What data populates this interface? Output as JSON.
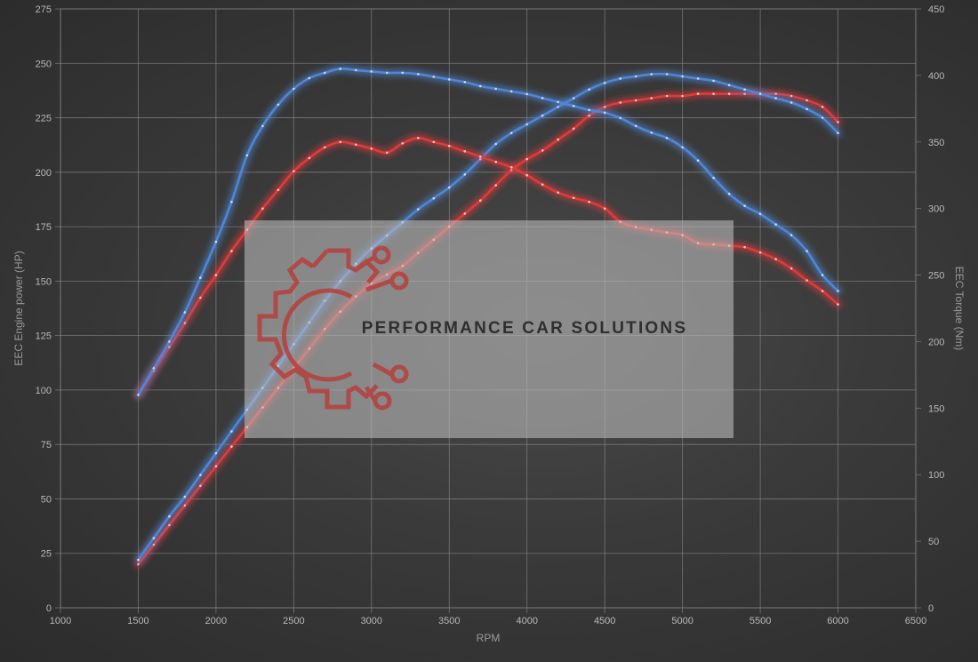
{
  "chart_data": {
    "type": "line",
    "title": "",
    "xlabel": "RPM",
    "ylabel_left": "EEC Engine power (HP)",
    "ylabel_right": "EEC Torque (Nm)",
    "xlim": [
      1000,
      6500
    ],
    "ylim_left": [
      0,
      275
    ],
    "ylim_right": [
      0,
      450
    ],
    "x_ticks": [
      1000,
      1500,
      2000,
      2500,
      3000,
      3500,
      4000,
      4500,
      5000,
      5500,
      6000,
      6500
    ],
    "y_left_ticks": [
      0,
      25,
      50,
      75,
      100,
      125,
      150,
      175,
      200,
      225,
      250,
      275
    ],
    "y_right_ticks": [
      0,
      50,
      100,
      150,
      200,
      250,
      300,
      350,
      400,
      450
    ],
    "grid": true,
    "series": [
      {
        "axis": "left",
        "color": "#e03a3a",
        "x": [
          1500,
          1600,
          1700,
          1800,
          1900,
          2000,
          2100,
          2200,
          2300,
          2400,
          2500,
          2600,
          2700,
          2800,
          2900,
          3000,
          3100,
          3200,
          3300,
          3400,
          3500,
          3600,
          3700,
          3800,
          3900,
          4000,
          4100,
          4200,
          4300,
          4400,
          4500,
          4600,
          4700,
          4800,
          4900,
          5000,
          5100,
          5200,
          5300,
          5400,
          5500,
          5600,
          5700,
          5800,
          5900,
          6000
        ],
        "y": [
          20,
          29,
          38,
          47,
          56,
          65,
          74,
          83,
          92,
          101,
          110,
          119,
          128,
          136,
          143,
          149,
          153,
          157,
          163,
          169,
          175,
          181,
          187,
          194,
          201,
          206,
          210,
          215,
          220,
          226,
          230,
          232,
          233,
          234,
          235,
          235,
          236,
          236,
          236,
          236,
          236,
          236,
          235,
          233,
          230,
          223
        ]
      },
      {
        "axis": "left",
        "color": "#4f86d6",
        "x": [
          1500,
          1600,
          1700,
          1800,
          1900,
          2000,
          2100,
          2200,
          2300,
          2400,
          2500,
          2600,
          2700,
          2800,
          2900,
          3000,
          3100,
          3200,
          3300,
          3400,
          3500,
          3600,
          3700,
          3800,
          3900,
          4000,
          4100,
          4200,
          4300,
          4400,
          4500,
          4600,
          4700,
          4800,
          4900,
          5000,
          5100,
          5200,
          5300,
          5400,
          5500,
          5600,
          5700,
          5800,
          5900,
          6000
        ],
        "y": [
          22,
          32,
          42,
          51,
          61,
          71,
          81,
          91,
          101,
          111,
          121,
          131,
          141,
          150,
          158,
          165,
          171,
          177,
          183,
          188,
          193,
          199,
          206,
          213,
          218,
          222,
          226,
          230,
          234,
          238,
          241,
          243,
          244,
          245,
          245,
          244,
          243,
          242,
          240,
          238,
          236,
          234,
          232,
          229,
          225,
          218
        ]
      },
      {
        "axis": "right",
        "color": "#e03a3a",
        "x": [
          1500,
          1600,
          1700,
          1800,
          1900,
          2000,
          2100,
          2200,
          2300,
          2400,
          2500,
          2600,
          2700,
          2800,
          2900,
          3000,
          3100,
          3200,
          3300,
          3400,
          3500,
          3600,
          3700,
          3800,
          3900,
          4000,
          4100,
          4200,
          4300,
          4400,
          4500,
          4600,
          4700,
          4800,
          4900,
          5000,
          5100,
          5200,
          5300,
          5400,
          5500,
          5600,
          5700,
          5800,
          5900,
          6000
        ],
        "y": [
          160,
          178,
          196,
          214,
          233,
          250,
          268,
          284,
          300,
          314,
          328,
          338,
          346,
          350,
          348,
          345,
          342,
          349,
          353,
          350,
          347,
          343,
          339,
          335,
          331,
          325,
          318,
          312,
          308,
          305,
          300,
          290,
          286,
          284,
          282,
          280,
          274,
          273,
          272,
          271,
          267,
          262,
          255,
          246,
          238,
          228
        ]
      },
      {
        "axis": "right",
        "color": "#4f86d6",
        "x": [
          1500,
          1600,
          1700,
          1800,
          1900,
          2000,
          2100,
          2200,
          2300,
          2400,
          2500,
          2600,
          2700,
          2800,
          2900,
          3000,
          3100,
          3200,
          3300,
          3400,
          3500,
          3600,
          3700,
          3800,
          3900,
          4000,
          4100,
          4200,
          4300,
          4400,
          4500,
          4600,
          4700,
          4800,
          4900,
          5000,
          5100,
          5200,
          5300,
          5400,
          5500,
          5600,
          5700,
          5800,
          5900,
          6000
        ],
        "y": [
          160,
          180,
          200,
          222,
          248,
          275,
          305,
          340,
          362,
          378,
          390,
          398,
          402,
          405,
          404,
          403,
          402,
          402,
          401,
          399,
          397,
          395,
          392,
          390,
          388,
          386,
          383,
          380,
          377,
          374,
          372,
          368,
          362,
          357,
          353,
          346,
          336,
          323,
          311,
          302,
          296,
          288,
          280,
          268,
          250,
          238
        ]
      }
    ]
  },
  "watermark": {
    "text": "PERFORMANCE CAR SOLUTIONS",
    "logo_icon": "gear-circuit-logo-icon",
    "logo_color": "#b5403d"
  }
}
